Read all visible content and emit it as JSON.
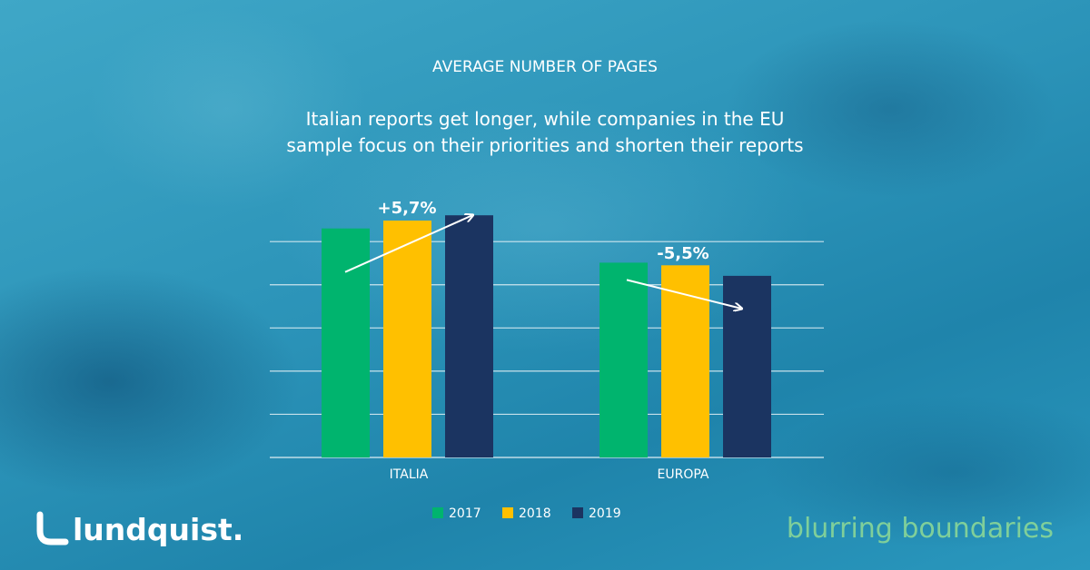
{
  "chart_data": {
    "type": "bar",
    "title": "AVERAGE NUMBER OF PAGES",
    "subtitle_lines": [
      "Italian reports get longer, while companies in the EU",
      "sample focus on their priorities and shorten their reports"
    ],
    "categories": [
      "ITALIA",
      "EUROPA"
    ],
    "series": [
      {
        "name": "2017",
        "color": "#00b46e",
        "values": [
          87,
          74
        ]
      },
      {
        "name": "2018",
        "color": "#ffc000",
        "values": [
          90,
          73
        ]
      },
      {
        "name": "2019",
        "color": "#1b3461",
        "values": [
          92,
          69
        ]
      }
    ],
    "annotations": [
      {
        "category": "ITALIA",
        "text": "+5,7%",
        "trend": "up"
      },
      {
        "category": "EUROPA",
        "text": "-5,5%",
        "trend": "down"
      }
    ],
    "ylim": [
      0,
      100
    ],
    "grid": true,
    "legend_position": "bottom"
  },
  "branding": {
    "logo_text": "lundquist.",
    "tagline": "blurring boundaries",
    "tagline_color": "#7fcf9a"
  }
}
